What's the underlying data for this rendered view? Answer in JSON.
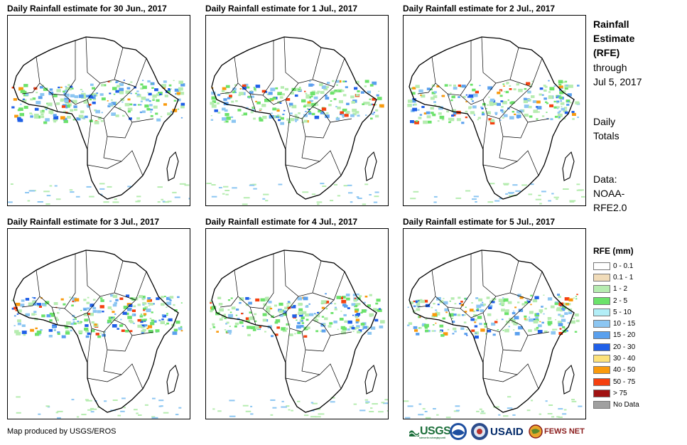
{
  "panels": [
    {
      "title": "Daily Rainfall estimate for 30 Jun., 2017"
    },
    {
      "title": "Daily Rainfall estimate for 1 Jul., 2017"
    },
    {
      "title": "Daily Rainfall estimate for 2 Jul., 2017"
    },
    {
      "title": "Daily Rainfall estimate for 3 Jul., 2017"
    },
    {
      "title": "Daily Rainfall estimate for 4 Jul., 2017"
    },
    {
      "title": "Daily Rainfall estimate for 5 Jul., 2017"
    }
  ],
  "sidebar": {
    "title_lines": [
      "Rainfall",
      "Estimate",
      "(RFE)"
    ],
    "through_lines": [
      "through",
      "Jul 5, 2017"
    ],
    "totals_lines": [
      "Daily",
      "Totals"
    ],
    "data_lines": [
      "Data:",
      "NOAA-",
      "RFE2.0"
    ]
  },
  "legend": {
    "title": "RFE (mm)",
    "items": [
      {
        "label": "0 - 0.1",
        "color": "#ffffff"
      },
      {
        "label": "0.1 - 1",
        "color": "#f1dcb9"
      },
      {
        "label": "1 - 2",
        "color": "#b6ecb0"
      },
      {
        "label": "2 - 5",
        "color": "#6be26a"
      },
      {
        "label": "5 - 10",
        "color": "#b2eef7"
      },
      {
        "label": "10 - 15",
        "color": "#8cc6f2"
      },
      {
        "label": "15 - 20",
        "color": "#5aa0ee"
      },
      {
        "label": "20 - 30",
        "color": "#1f5fe8"
      },
      {
        "label": "30 - 40",
        "color": "#fde27a"
      },
      {
        "label": "40 - 50",
        "color": "#f99a0d"
      },
      {
        "label": "50 - 75",
        "color": "#f5400f"
      },
      {
        "label": "> 75",
        "color": "#a11212"
      },
      {
        "label": "No Data",
        "color": "#a0a0a0"
      }
    ]
  },
  "footer": {
    "credit": "Map produced by USGS/EROS",
    "logos": {
      "usgs": "USGS",
      "usgs_tagline": "science for a changing world",
      "noaa": "noaa-emblem-icon",
      "usaid": "USAID",
      "fews": "FEWS NET"
    }
  }
}
